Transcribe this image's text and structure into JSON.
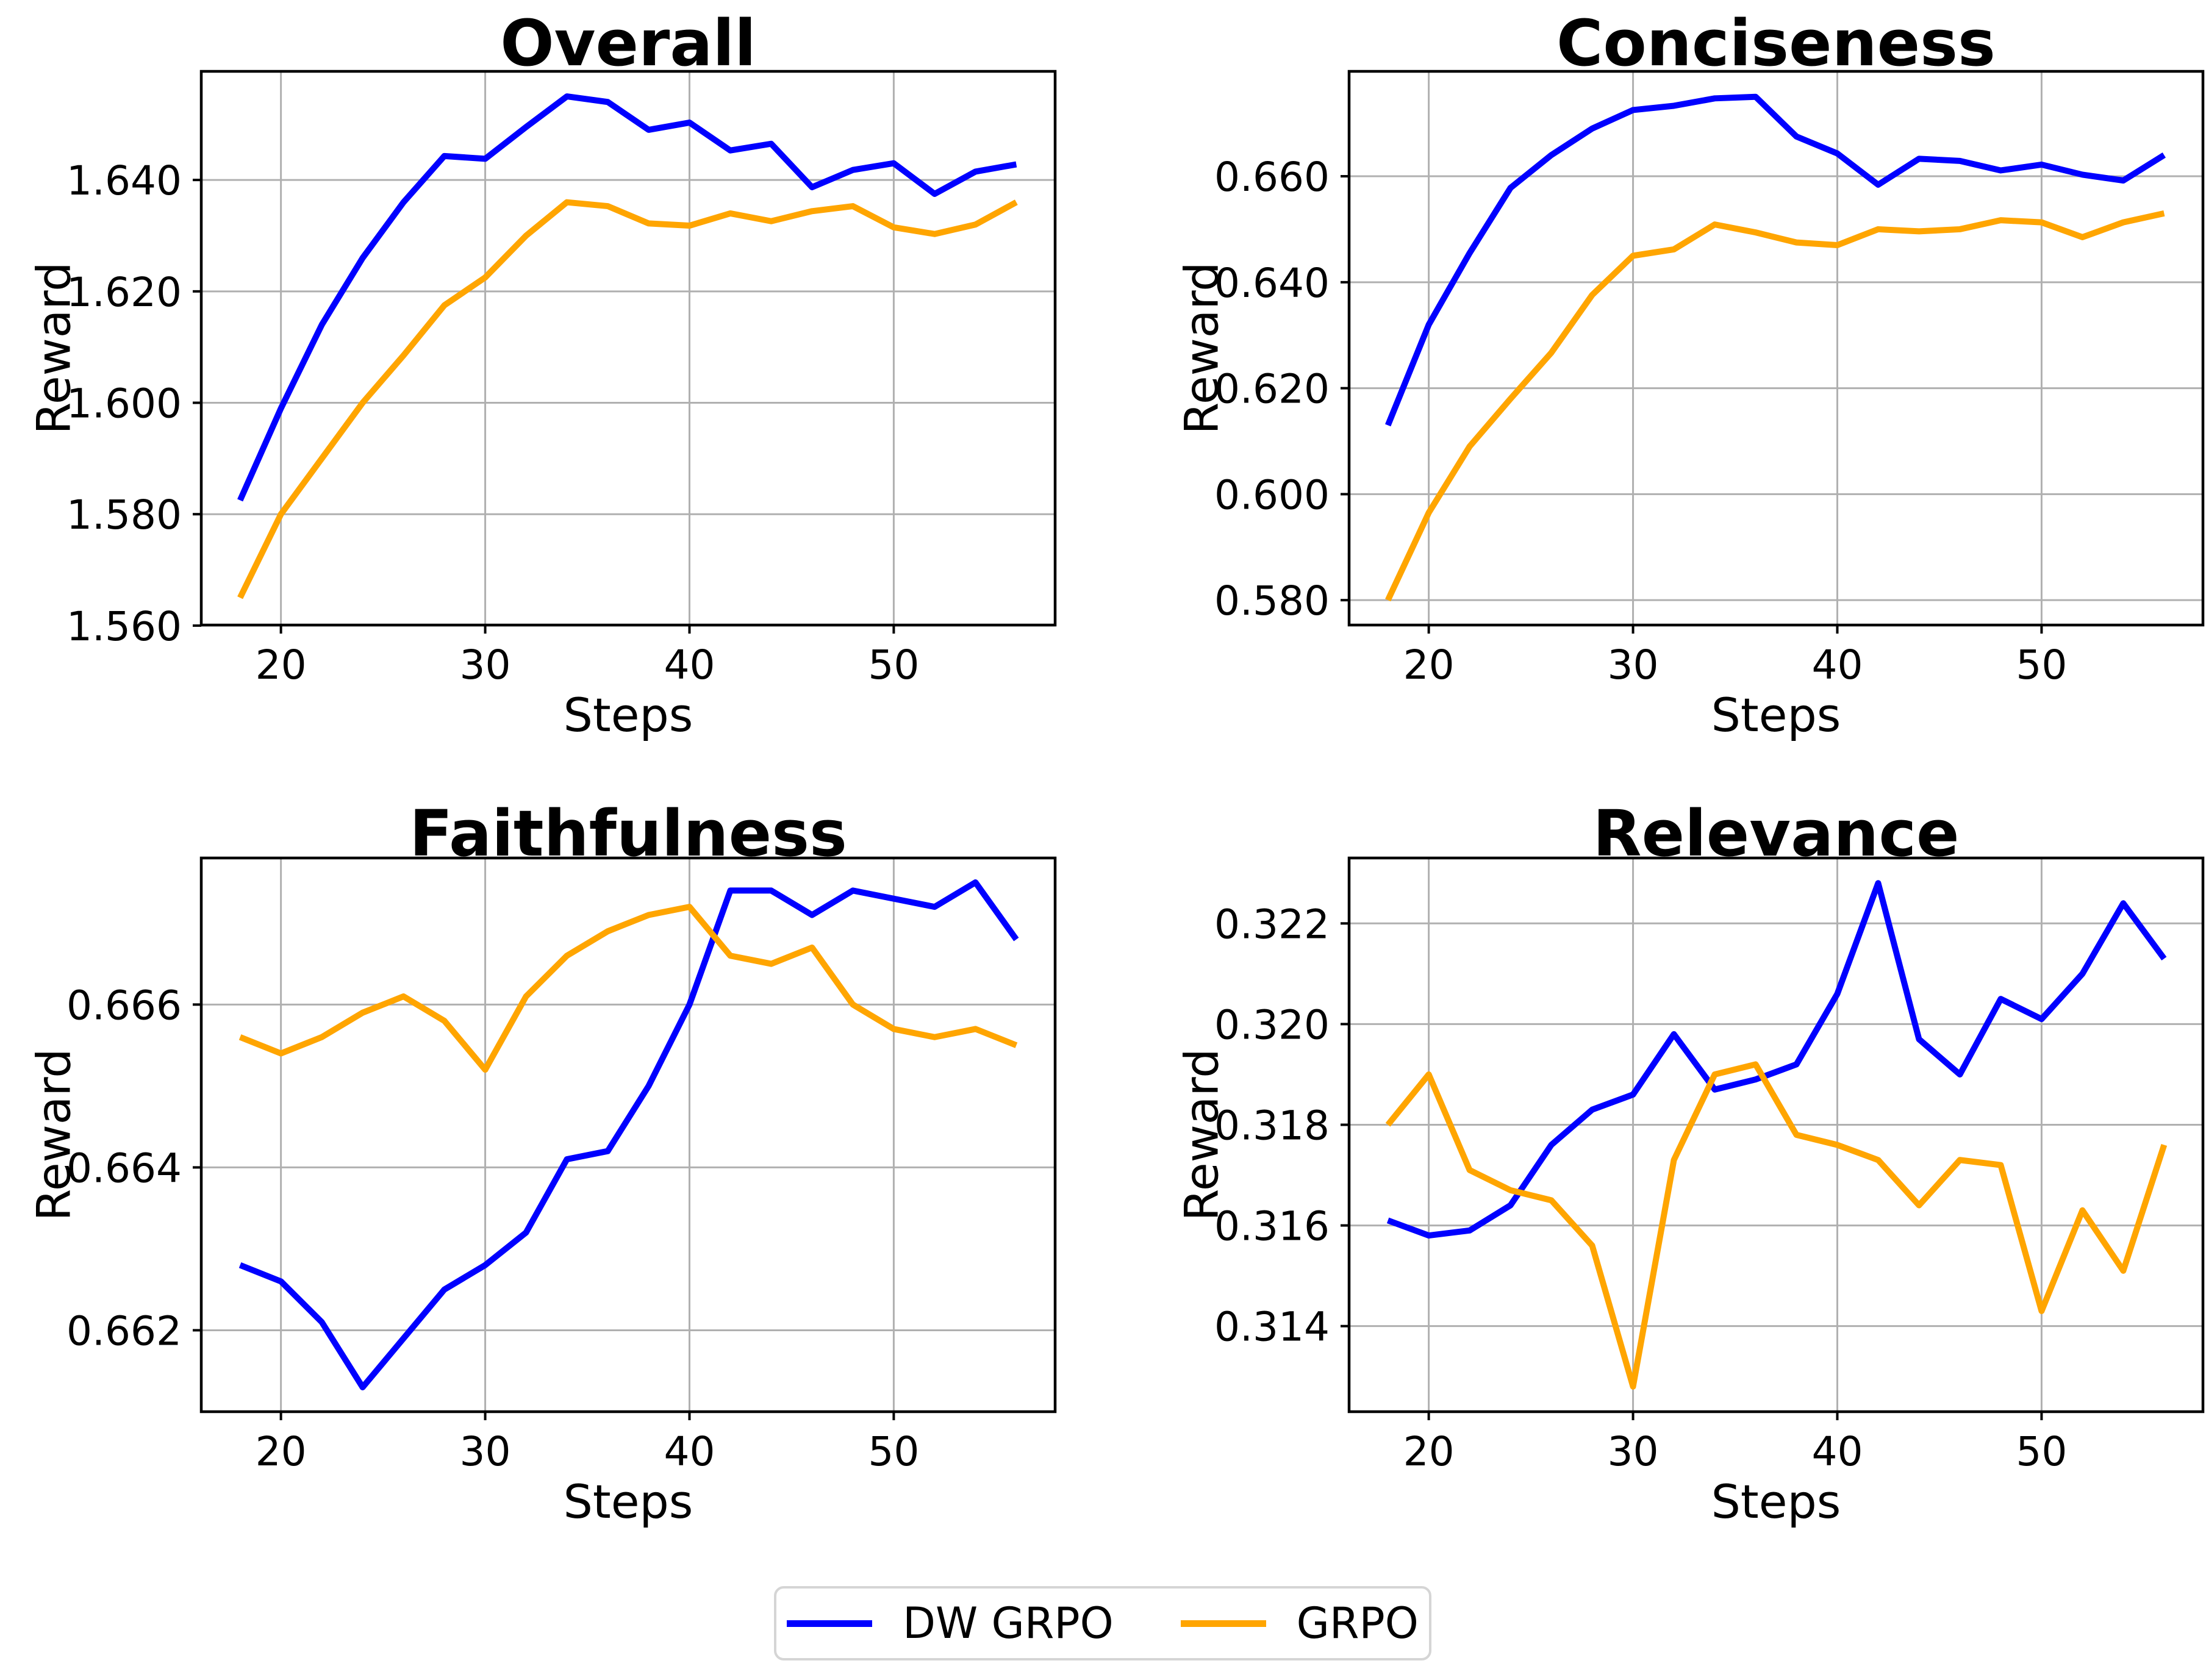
{
  "figure": {
    "background": "#ffffff",
    "grid_color": "#b0b0b0",
    "spine_color": "#000000"
  },
  "legend": {
    "position": "bottom-center",
    "items": [
      {
        "label": "DW GRPO",
        "color": "#0000ff"
      },
      {
        "label": "GRPO",
        "color": "#ffa500"
      }
    ]
  },
  "chart_data": [
    {
      "type": "line",
      "title": "Overall",
      "xlabel": "Steps",
      "ylabel": "Reward",
      "grid": true,
      "x": [
        18,
        20,
        22,
        24,
        26,
        28,
        30,
        32,
        34,
        36,
        38,
        40,
        42,
        44,
        46,
        48,
        50,
        52,
        54,
        56
      ],
      "xticks": [
        20,
        30,
        40,
        50
      ],
      "yticks": [
        1.56,
        1.58,
        1.6,
        1.62,
        1.64
      ],
      "xlim": [
        16.1,
        57.9
      ],
      "ylim": [
        1.5601,
        1.6595
      ],
      "series": [
        {
          "name": "DW GRPO",
          "color": "#0000ff",
          "values": [
            1.5825,
            1.599,
            1.614,
            1.626,
            1.636,
            1.6443,
            1.6438,
            1.6495,
            1.655,
            1.654,
            1.649,
            1.6503,
            1.6453,
            1.6465,
            1.6387,
            1.6418,
            1.643,
            1.6375,
            1.6415,
            1.6428
          ]
        },
        {
          "name": "GRPO",
          "color": "#ffa500",
          "values": [
            1.565,
            1.58,
            1.59,
            1.6,
            1.6085,
            1.6175,
            1.6225,
            1.63,
            1.636,
            1.6353,
            1.6322,
            1.6318,
            1.634,
            1.6326,
            1.6344,
            1.6353,
            1.6315,
            1.6303,
            1.632,
            1.636
          ]
        }
      ]
    },
    {
      "type": "line",
      "title": "Conciseness",
      "xlabel": "Steps",
      "ylabel": "Reward",
      "grid": true,
      "x": [
        18,
        20,
        22,
        24,
        26,
        28,
        30,
        32,
        34,
        36,
        38,
        40,
        42,
        44,
        46,
        48,
        50,
        52,
        54,
        56
      ],
      "xticks": [
        20,
        30,
        40,
        50
      ],
      "yticks": [
        0.58,
        0.6,
        0.62,
        0.64,
        0.66
      ],
      "xlim": [
        16.1,
        57.9
      ],
      "ylim": [
        0.5753,
        0.6798
      ],
      "series": [
        {
          "name": "DW GRPO",
          "color": "#0000ff",
          "values": [
            0.613,
            0.632,
            0.6455,
            0.6578,
            0.664,
            0.669,
            0.6725,
            0.6733,
            0.6747,
            0.675,
            0.6675,
            0.6643,
            0.6584,
            0.6633,
            0.6629,
            0.6611,
            0.6622,
            0.6603,
            0.6592,
            0.664
          ]
        },
        {
          "name": "GRPO",
          "color": "#ffa500",
          "values": [
            0.58,
            0.5965,
            0.609,
            0.618,
            0.6267,
            0.6376,
            0.645,
            0.6462,
            0.6509,
            0.6494,
            0.6475,
            0.647,
            0.65,
            0.6496,
            0.65,
            0.6517,
            0.6513,
            0.6485,
            0.6513,
            0.653
          ]
        }
      ]
    },
    {
      "type": "line",
      "title": "Faithfulness",
      "xlabel": "Steps",
      "ylabel": "Reward",
      "grid": true,
      "x": [
        18,
        20,
        22,
        24,
        26,
        28,
        30,
        32,
        34,
        36,
        38,
        40,
        42,
        44,
        46,
        48,
        50,
        52,
        54,
        56
      ],
      "xticks": [
        20,
        30,
        40,
        50
      ],
      "yticks": [
        0.662,
        0.664,
        0.666
      ],
      "xlim": [
        16.1,
        57.9
      ],
      "ylim": [
        0.661,
        0.6678
      ],
      "series": [
        {
          "name": "DW GRPO",
          "color": "#0000ff",
          "values": [
            0.6628,
            0.6626,
            0.6621,
            0.6613,
            0.6619,
            0.6625,
            0.6628,
            0.6632,
            0.6641,
            0.6642,
            0.665,
            0.666,
            0.6674,
            0.6674,
            0.6671,
            0.6674,
            0.6673,
            0.6672,
            0.6675,
            0.6668
          ]
        },
        {
          "name": "GRPO",
          "color": "#ffa500",
          "values": [
            0.6656,
            0.6654,
            0.6656,
            0.6659,
            0.6661,
            0.6658,
            0.6652,
            0.6661,
            0.6666,
            0.6669,
            0.6671,
            0.6672,
            0.6666,
            0.6665,
            0.6667,
            0.666,
            0.6657,
            0.6656,
            0.6657,
            0.6655
          ]
        }
      ]
    },
    {
      "type": "line",
      "title": "Relevance",
      "xlabel": "Steps",
      "ylabel": "Reward",
      "grid": true,
      "x": [
        18,
        20,
        22,
        24,
        26,
        28,
        30,
        32,
        34,
        36,
        38,
        40,
        42,
        44,
        46,
        48,
        50,
        52,
        54,
        56
      ],
      "xticks": [
        20,
        30,
        40,
        50
      ],
      "yticks": [
        0.314,
        0.316,
        0.318,
        0.32,
        0.322
      ],
      "xlim": [
        16.1,
        57.9
      ],
      "ylim": [
        0.3123,
        0.3233
      ],
      "series": [
        {
          "name": "DW GRPO",
          "color": "#0000ff",
          "values": [
            0.3161,
            0.3158,
            0.3159,
            0.3164,
            0.3176,
            0.3183,
            0.3186,
            0.3198,
            0.3187,
            0.3189,
            0.3192,
            0.3206,
            0.3228,
            0.3197,
            0.319,
            0.3205,
            0.3201,
            0.321,
            0.3224,
            0.3213
          ]
        },
        {
          "name": "GRPO",
          "color": "#ffa500",
          "values": [
            0.318,
            0.319,
            0.3171,
            0.3167,
            0.3165,
            0.3156,
            0.3128,
            0.3173,
            0.319,
            0.3192,
            0.3178,
            0.3176,
            0.3173,
            0.3164,
            0.3173,
            0.3172,
            0.3143,
            0.3163,
            0.3151,
            0.3176
          ]
        }
      ]
    }
  ]
}
